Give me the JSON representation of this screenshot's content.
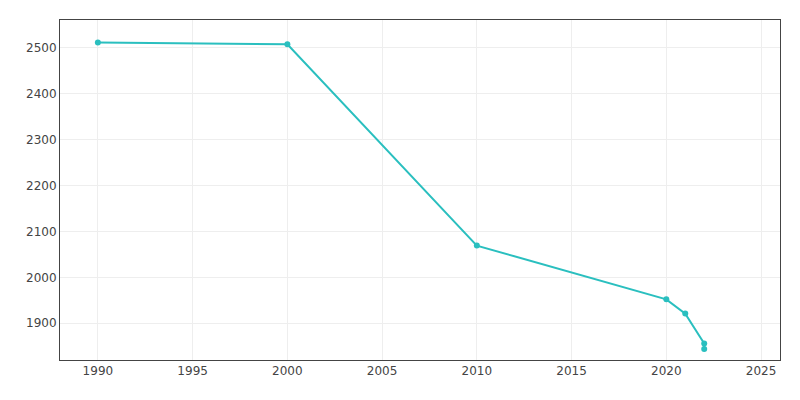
{
  "chart_data": {
    "type": "line",
    "x": [
      1990,
      2000,
      2010,
      2020,
      2021,
      2022,
      2022
    ],
    "values": [
      2511,
      2507,
      2069,
      1952,
      1921,
      1856,
      1844
    ],
    "color": "#2abfbf",
    "marker": "circle",
    "xlim": [
      1988,
      2026
    ],
    "ylim": [
      1820,
      2560
    ],
    "xticks": [
      1990,
      1995,
      2000,
      2005,
      2010,
      2015,
      2020,
      2025
    ],
    "yticks": [
      1900,
      2000,
      2100,
      2200,
      2300,
      2400,
      2500
    ],
    "grid": true
  }
}
